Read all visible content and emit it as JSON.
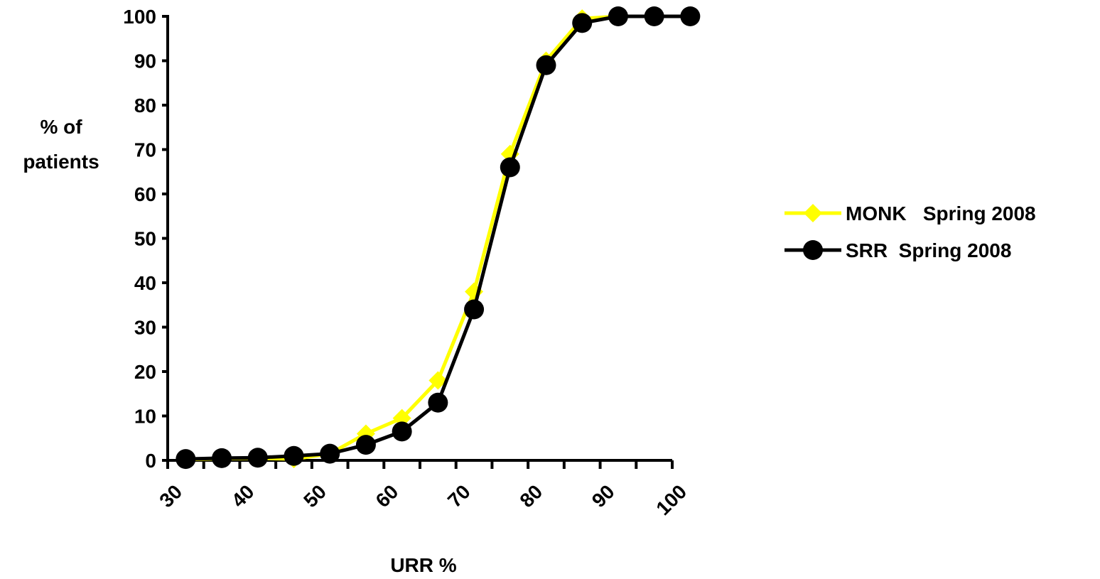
{
  "chart_data": {
    "type": "line",
    "title": "",
    "xlabel": "URR %",
    "ylabel_lines": [
      "% of",
      "patients"
    ],
    "x_ticks": [
      "30",
      "40",
      "50",
      "60",
      "70",
      "80",
      "90",
      "100"
    ],
    "y_ticks": [
      "0",
      "10",
      "20",
      "30",
      "40",
      "50",
      "60",
      "70",
      "80",
      "90",
      "100"
    ],
    "xlim": [
      30,
      100
    ],
    "ylim": [
      0,
      100
    ],
    "legend_position": "right",
    "categories": [
      32.5,
      37.5,
      42.5,
      47.5,
      52.5,
      57.5,
      62.5,
      67.5,
      72.5,
      77.5,
      82.5,
      87.5,
      92.5,
      97.5,
      102.5
    ],
    "series": [
      {
        "name": "MONK   Spring 2008",
        "color": "#ffff00",
        "marker": "diamond",
        "values": [
          0.2,
          0.4,
          0.5,
          0.3,
          1.5,
          6,
          9.5,
          18,
          38,
          69,
          90,
          99.5,
          100,
          100,
          100
        ]
      },
      {
        "name": "SRR  Spring 2008",
        "color": "#000000",
        "marker": "circle",
        "values": [
          0.3,
          0.5,
          0.6,
          1,
          1.5,
          3.5,
          6.5,
          13,
          34,
          66,
          89,
          98.5,
          100,
          100,
          100
        ]
      }
    ]
  }
}
